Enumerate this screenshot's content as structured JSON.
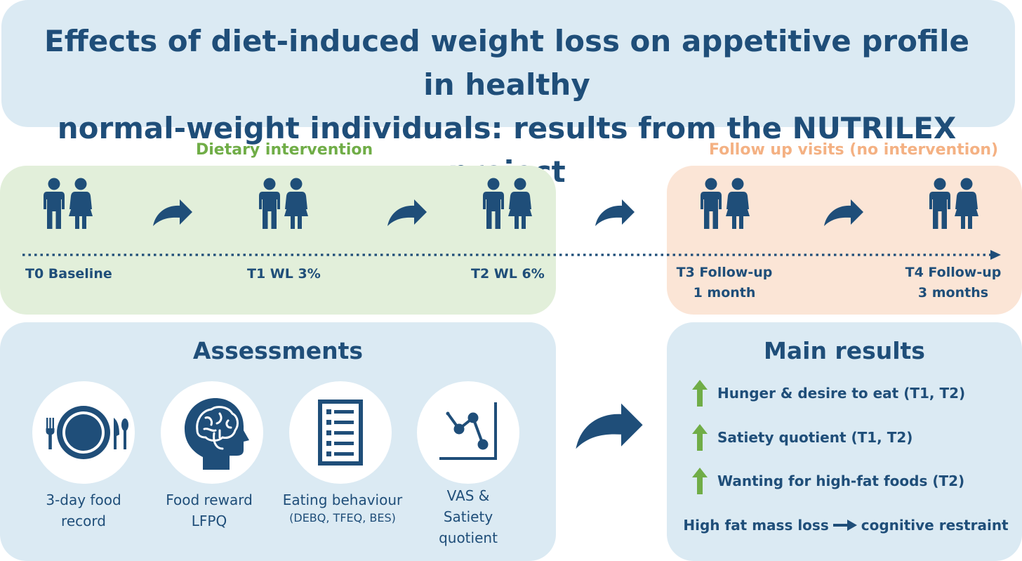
{
  "title": {
    "line1": "Effects of diet-induced weight loss on appetitive profile in healthy",
    "line2": "normal-weight individuals: results from the NUTRILEX project"
  },
  "timeline": {
    "intervention_label": "Dietary intervention",
    "followup_label": "Follow up visits (no intervention)",
    "timepoints": [
      {
        "line1": "T0 Baseline",
        "line2": ""
      },
      {
        "line1": "T1 WL 3%",
        "line2": ""
      },
      {
        "line1": "T2 WL 6%",
        "line2": ""
      },
      {
        "line1": "T3 Follow-up",
        "line2": "1 month"
      },
      {
        "line1": "T4 Follow-up",
        "line2": "3 months"
      }
    ],
    "icon": "couple-icon"
  },
  "assessments": {
    "heading": "Assessments",
    "items": [
      {
        "icon": "plate-cutlery-icon",
        "line1": "3-day food",
        "line2": "record",
        "line3": ""
      },
      {
        "icon": "brain-head-icon",
        "line1": "Food reward",
        "line2": "LFPQ",
        "line3": ""
      },
      {
        "icon": "checklist-icon",
        "line1": "Eating behaviour",
        "line2": "(DEBQ, TFEQ, BES)",
        "line3": ""
      },
      {
        "icon": "line-chart-icon",
        "line1": "VAS &",
        "line2": "Satiety",
        "line3": "quotient"
      }
    ]
  },
  "results": {
    "heading": "Main results",
    "items": [
      {
        "icon": "up-arrow-icon",
        "text": "Hunger & desire to eat (T1, T2)"
      },
      {
        "icon": "up-arrow-icon",
        "text": "Satiety quotient (T1, T2)"
      },
      {
        "icon": "up-arrow-icon",
        "text": "Wanting for high-fat foods (T2)"
      }
    ],
    "conclusion_left": "High fat mass loss",
    "conclusion_right": "cognitive restraint"
  },
  "colors": {
    "navy": "#1f4e79",
    "green": "#70ad47",
    "orange": "#f4b183",
    "light_blue": "#dbeaf3",
    "light_green": "#e2efda",
    "light_orange": "#fbe5d6"
  }
}
